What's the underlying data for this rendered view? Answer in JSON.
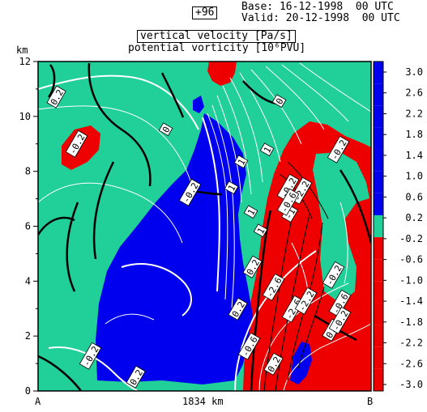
{
  "header": {
    "forecast_hour": "+96",
    "base": "Base: 16-12-1998  00 UTC",
    "valid": "Valid: 20-12-1998  00 UTC",
    "title_line1": "vertical velocity [Pa/s]",
    "title_line2": "potential vorticity [10⁶PVU]"
  },
  "chart_data": {
    "type": "contour",
    "title": "vertical velocity [Pa/s]",
    "subtitle": "potential vorticity [10⁶PVU]",
    "ylabel": "km",
    "xlabel": "1834 km",
    "x_start_label": "A",
    "x_end_label": "B",
    "ylim": [
      0,
      12
    ],
    "y_ticks": [
      0,
      2,
      4,
      6,
      8,
      10,
      12
    ],
    "y_tick_labels": [
      "0",
      "2",
      "4",
      "6",
      "8",
      "10",
      "12"
    ],
    "colorbar": {
      "levels": [
        "3.0",
        "2.6",
        "2.2",
        "1.8",
        "1.4",
        "1.0",
        "0.6",
        "0.2",
        "-0.2",
        "-0.6",
        "-1.0",
        "-1.4",
        "-1.8",
        "-2.2",
        "-2.6",
        "-3.0"
      ],
      "colors": {
        "ascent": "#0000ee",
        "neutral": "#20d098",
        "descent": "#ee0000"
      }
    },
    "contour_labels": [
      "0.2",
      "-0.2",
      "0",
      "0.2",
      "-0.2",
      "1",
      "1",
      "1",
      "1",
      "1",
      "-0.6",
      "-0.2",
      "0.2",
      "0.2",
      "-1",
      "-2.6",
      "-2.6",
      "-2.2",
      "-2.2",
      "-0.2",
      "-0.2",
      "0.2",
      "-0.6",
      "-0.6",
      "-0.2",
      "0.2",
      "-0.2",
      "0"
    ],
    "grid": false
  }
}
